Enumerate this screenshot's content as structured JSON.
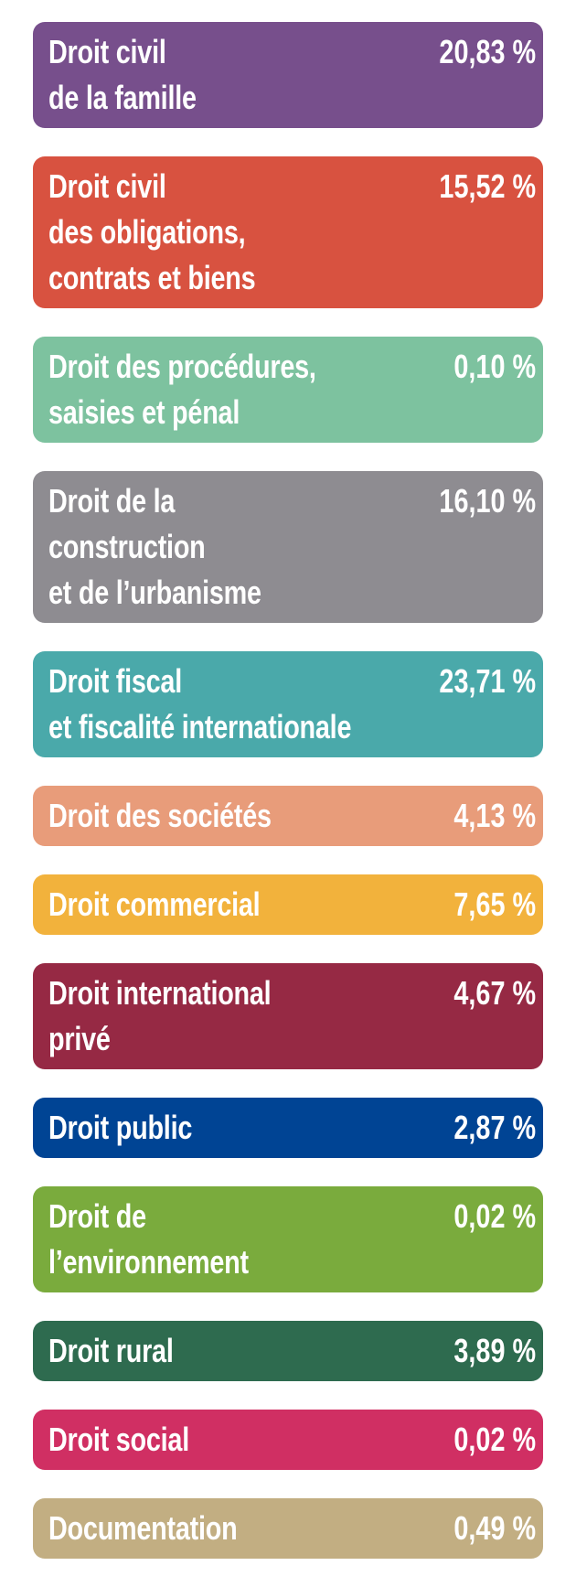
{
  "items": [
    {
      "lines": [
        "Droit civil",
        "de la famille"
      ],
      "value": "20,83 %",
      "color": "#774F8C"
    },
    {
      "lines": [
        "Droit civil",
        "des obligations,",
        "contrats et biens"
      ],
      "value": "15,52 %",
      "color": "#D85240"
    },
    {
      "lines": [
        "Droit des procédures,",
        "saisies et pénal"
      ],
      "value": "0,10 %",
      "color": "#7DC29F"
    },
    {
      "lines": [
        "Droit de la",
        "construction",
        "et de l’urbanisme"
      ],
      "value": "16,10 %",
      "color": "#8E8C91"
    },
    {
      "lines": [
        "Droit fiscal",
        "et fiscalité internationale"
      ],
      "value": "23,71 %",
      "color": "#4AA9AA"
    },
    {
      "lines": [
        "Droit des sociétés"
      ],
      "value": "4,13 %",
      "color": "#E89C7A"
    },
    {
      "lines": [
        "Droit commercial"
      ],
      "value": "7,65 %",
      "color": "#F2B23C"
    },
    {
      "lines": [
        "Droit international",
        "privé"
      ],
      "value": "4,67 %",
      "color": "#962944"
    },
    {
      "lines": [
        "Droit public"
      ],
      "value": "2,87 %",
      "color": "#004494"
    },
    {
      "lines": [
        "Droit de",
        "l’environnement"
      ],
      "value": "0,02 %",
      "color": "#7AAB3D"
    },
    {
      "lines": [
        "Droit rural"
      ],
      "value": "3,89 %",
      "color": "#2E6B4F"
    },
    {
      "lines": [
        "Droit social"
      ],
      "value": "0,02 %",
      "color": "#D02F63"
    },
    {
      "lines": [
        "Documentation"
      ],
      "value": "0,49 %",
      "color": "#C2AE82"
    }
  ]
}
